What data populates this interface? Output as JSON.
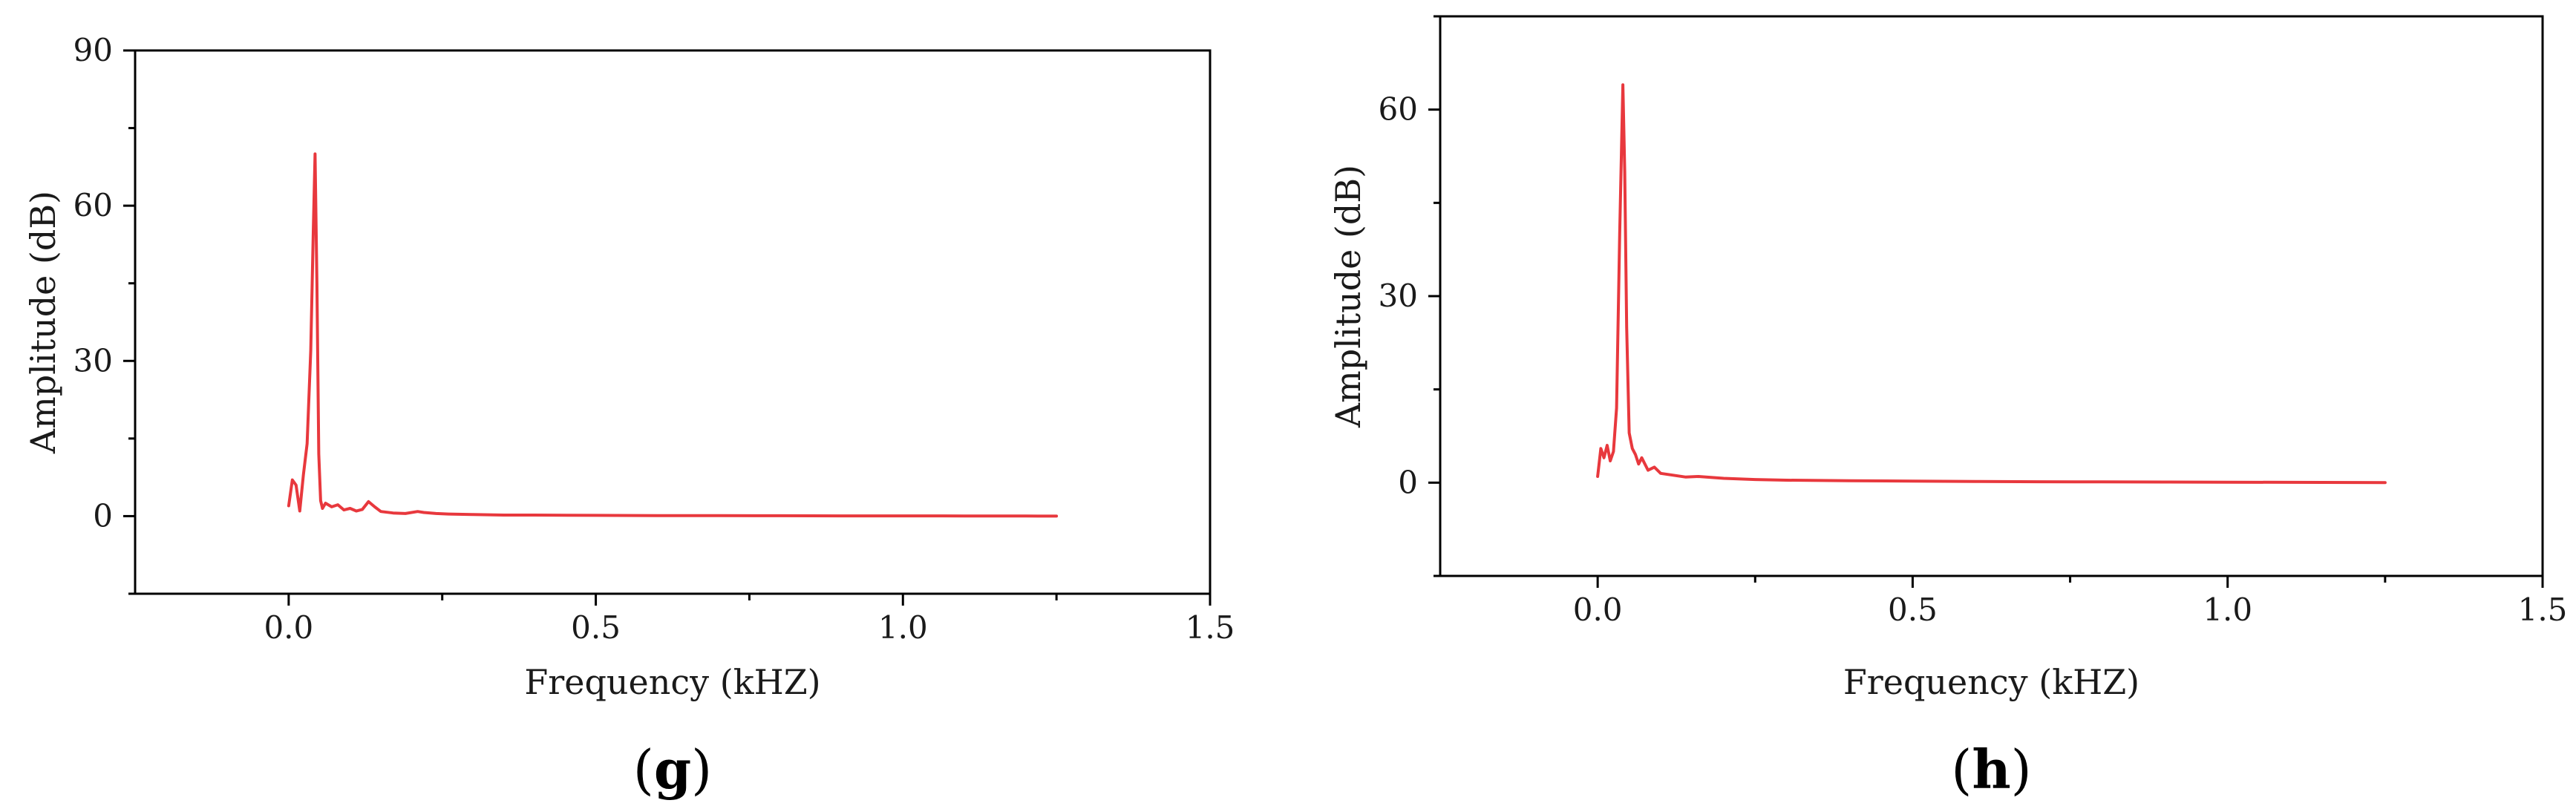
{
  "colors": {
    "series": "#e8383d"
  },
  "chart_data": [
    {
      "type": "line",
      "panel_label": "g",
      "xlabel": "Frequency (kHZ)",
      "ylabel": "Amplitude (dB)",
      "xlim": [
        -0.25,
        1.5
      ],
      "ylim": [
        -15,
        90
      ],
      "xticks": [
        0.0,
        0.5,
        1.0,
        1.5
      ],
      "xtick_labels": [
        "0.0",
        "0.5",
        "1.0",
        "1.5"
      ],
      "yticks": [
        0,
        30,
        60,
        90
      ],
      "ytick_labels": [
        "0",
        "30",
        "60",
        "90"
      ],
      "grid": false,
      "series": [
        {
          "x": [
            0.0,
            0.006,
            0.012,
            0.018,
            0.024,
            0.03,
            0.036,
            0.04,
            0.043,
            0.046,
            0.049,
            0.052,
            0.055,
            0.06,
            0.07,
            0.08,
            0.09,
            0.1,
            0.11,
            0.12,
            0.13,
            0.14,
            0.15,
            0.17,
            0.19,
            0.21,
            0.22,
            0.24,
            0.26,
            0.3,
            0.35,
            0.4,
            0.5,
            0.6,
            0.7,
            0.8,
            0.9,
            1.0,
            1.1,
            1.2,
            1.25
          ],
          "y": [
            2,
            7,
            6,
            1,
            8,
            14,
            32,
            55,
            70,
            45,
            12,
            3,
            1.5,
            2.5,
            1.8,
            2.2,
            1.2,
            1.5,
            1.0,
            1.3,
            2.8,
            1.8,
            0.9,
            0.6,
            0.5,
            0.9,
            0.7,
            0.5,
            0.4,
            0.3,
            0.2,
            0.2,
            0.15,
            0.1,
            0.1,
            0.08,
            0.05,
            0.05,
            0.03,
            0.02,
            0.0
          ]
        }
      ]
    },
    {
      "type": "line",
      "panel_label": "h",
      "xlabel": "Frequency (kHZ)",
      "ylabel": "Amplitude (dB)",
      "xlim": [
        -0.25,
        1.5
      ],
      "ylim": [
        -15,
        75
      ],
      "xticks": [
        0.0,
        0.5,
        1.0,
        1.5
      ],
      "xtick_labels": [
        "0.0",
        "0.5",
        "1.0",
        "1.5"
      ],
      "yticks": [
        0,
        30,
        60
      ],
      "ytick_labels": [
        "0",
        "30",
        "60"
      ],
      "grid": false,
      "series": [
        {
          "x": [
            0.0,
            0.005,
            0.01,
            0.015,
            0.02,
            0.025,
            0.03,
            0.035,
            0.04,
            0.043,
            0.046,
            0.05,
            0.055,
            0.06,
            0.065,
            0.07,
            0.08,
            0.09,
            0.1,
            0.12,
            0.14,
            0.16,
            0.2,
            0.25,
            0.3,
            0.4,
            0.5,
            0.6,
            0.7,
            0.8,
            0.9,
            1.0,
            1.1,
            1.2,
            1.25
          ],
          "y": [
            1,
            5.5,
            4,
            6,
            3.5,
            5,
            12,
            40,
            64,
            50,
            25,
            8,
            5.5,
            4.5,
            3,
            4,
            2,
            2.5,
            1.5,
            1.2,
            0.9,
            1.0,
            0.7,
            0.5,
            0.4,
            0.3,
            0.25,
            0.2,
            0.15,
            0.12,
            0.1,
            0.08,
            0.05,
            0.03,
            0.0
          ]
        }
      ]
    }
  ]
}
